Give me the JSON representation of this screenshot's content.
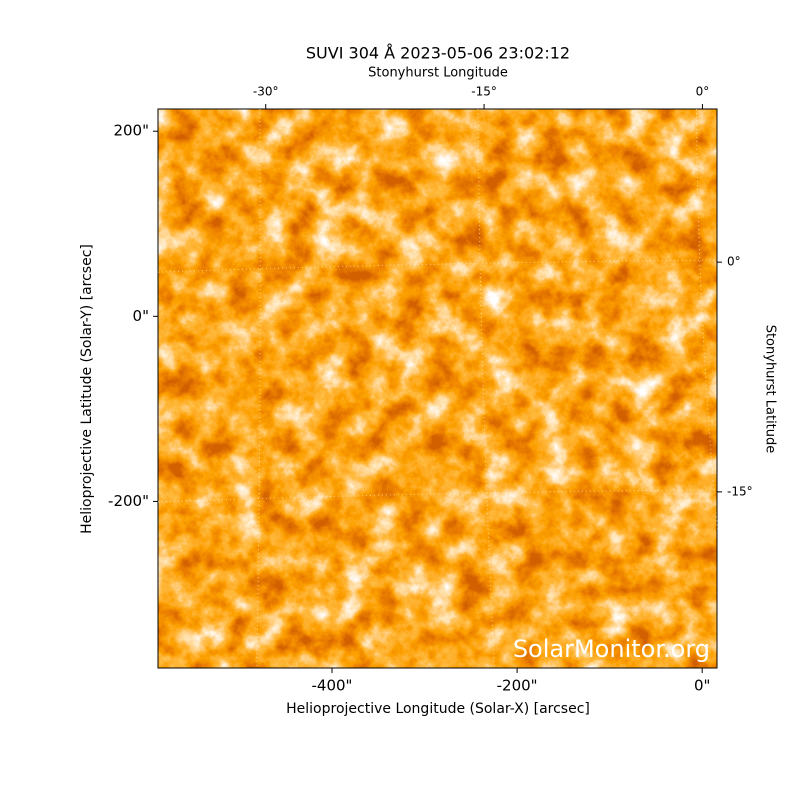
{
  "chart_data": {
    "type": "image",
    "title": "SUVI 304 Å 2023-05-06 23:02:12",
    "xlabel": "Helioprojective Longitude (Solar-X) [arcsec]",
    "ylabel": "Helioprojective Latitude (Solar-Y) [arcsec]",
    "x2label": "Stonyhurst Longitude",
    "y2label": "Stonyhurst Latitude",
    "watermark": "SolarMonitor.org",
    "xlim": [
      -588,
      16
    ],
    "ylim": [
      -380,
      224
    ],
    "xticks": [
      {
        "value": -400,
        "label": "-400\""
      },
      {
        "value": -200,
        "label": "-200\""
      },
      {
        "value": 0,
        "label": "0\""
      }
    ],
    "yticks": [
      {
        "value": -200,
        "label": "-200\""
      },
      {
        "value": 0,
        "label": "0\""
      },
      {
        "value": 200,
        "label": "200\""
      }
    ],
    "x2lim": [
      -37.4,
      1
    ],
    "x2ticks": [
      {
        "value": -30,
        "label": "-30°"
      },
      {
        "value": -15,
        "label": "-15°"
      },
      {
        "value": 0,
        "label": "0°"
      }
    ],
    "y2lim": [
      -26.5,
      10
    ],
    "y2ticks": [
      {
        "value": -15,
        "label": "-15°"
      },
      {
        "value": 0,
        "label": "0°"
      }
    ],
    "grid": true
  }
}
